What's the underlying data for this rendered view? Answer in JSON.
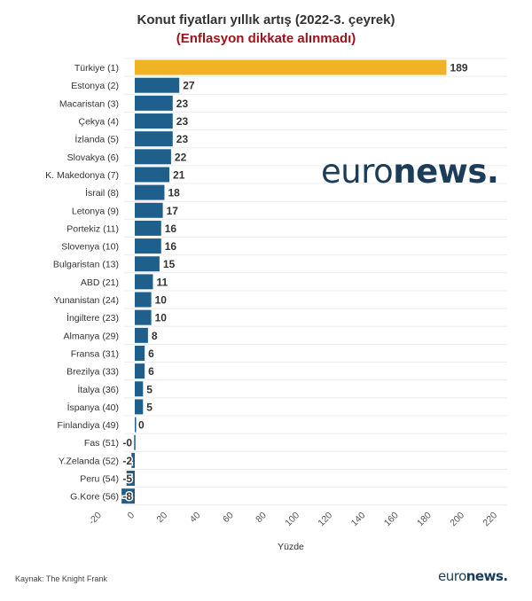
{
  "chart_data": {
    "type": "bar",
    "orientation": "horizontal",
    "title": "Konut fiyatları yıllık artış (2022-3. çeyrek)",
    "subtitle": "(Enflasyon dikkate alınmadı)",
    "xlabel": "Yüzde",
    "ylabel": "",
    "xlim": [
      -20,
      220
    ],
    "xticks": [
      -20,
      0,
      20,
      40,
      60,
      80,
      100,
      120,
      140,
      160,
      180,
      200,
      220
    ],
    "grid": true,
    "categories": [
      "Türkiye (1)",
      "Estonya (2)",
      "Macaristan (3)",
      "Çekya (4)",
      "İzlanda (5)",
      "Slovakya (6)",
      "K. Makedonya (7)",
      "İsrail (8)",
      "Letonya (9)",
      "Portekiz (11)",
      "Slovenya (10)",
      "Bulgaristan (13)",
      "ABD (21)",
      "Yunanistan (24)",
      "İngiltere (23)",
      "Almanya (29)",
      "Fransa (31)",
      "Brezilya (33)",
      "İtalya (36)",
      "İspanya (40)",
      "Finlandiya (49)",
      "Fas (51)",
      "Y.Zelanda (52)",
      "Peru (54)",
      "G.Kore (56)"
    ],
    "values": [
      189,
      27,
      23,
      23,
      23,
      22,
      21,
      18,
      17,
      16,
      16,
      15,
      11,
      10,
      10,
      8,
      6,
      6,
      5,
      5,
      0,
      -0.4,
      -2,
      -5,
      -8
    ],
    "value_labels": [
      "189",
      "27",
      "23",
      "23",
      "23",
      "22",
      "21",
      "18",
      "17",
      "16",
      "16",
      "15",
      "11",
      "10",
      "10",
      "8",
      "6",
      "6",
      "5",
      "5",
      "0",
      "-0",
      "-2",
      "-5",
      "-8"
    ],
    "colors": {
      "highlight": "#f0b323",
      "default": "#1e5f8b"
    }
  },
  "source": "Kaynak: The Knight Frank",
  "logo": {
    "part1": "euro",
    "part2": "news."
  }
}
